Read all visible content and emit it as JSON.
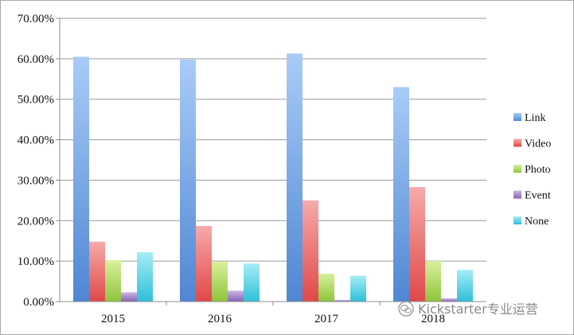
{
  "chart_data": {
    "type": "bar",
    "categories": [
      "2015",
      "2016",
      "2017",
      "2018"
    ],
    "series": [
      {
        "name": "Link",
        "values": [
          60.5,
          59.8,
          61.3,
          53.0
        ],
        "color": "#4f86d3",
        "color_light": "#a9ccf7"
      },
      {
        "name": "Video",
        "values": [
          14.8,
          18.7,
          25.0,
          28.3
        ],
        "color": "#e04848",
        "color_light": "#f7aaaa"
      },
      {
        "name": "Photo",
        "values": [
          10.2,
          9.8,
          6.9,
          10.0
        ],
        "color": "#8ec43c",
        "color_light": "#d9f09c"
      },
      {
        "name": "Event",
        "values": [
          2.3,
          2.7,
          0.4,
          0.8
        ],
        "color": "#8663b3",
        "color_light": "#cbb6e6"
      },
      {
        "name": "None",
        "values": [
          12.2,
          9.4,
          6.4,
          7.8
        ],
        "color": "#2ec0d8",
        "color_light": "#a6ecf6"
      }
    ],
    "y_ticks": [
      "0.00%",
      "10.00%",
      "20.00%",
      "30.00%",
      "40.00%",
      "50.00%",
      "60.00%",
      "70.00%"
    ],
    "ylim": [
      0,
      70
    ],
    "y_unit": "%",
    "grid": true,
    "legend_position": "right",
    "title": "",
    "xlabel": "",
    "ylabel": ""
  },
  "watermark": {
    "text": "Kickstarter专业运营",
    "icon": "wechat-icon"
  },
  "colors": {
    "gridline": "#9a9a9a",
    "axis": "#8c8c8c",
    "border": "#a9a9a9"
  }
}
